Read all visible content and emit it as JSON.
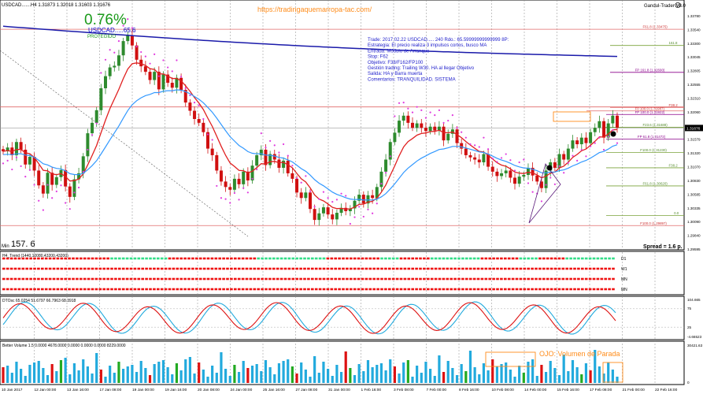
{
  "header": {
    "symbol_line": "USDCAD.......H4  1.31873 1.32018 1.31603 1.31676",
    "expert_label": "Gandul-Trader V8.0",
    "expert_icon": "smile-icon",
    "watermark_url": "https://tradingaquemarropa-tac.com/"
  },
  "badge": {
    "percent": "0.76%",
    "pair_line": "USDCAD.....65.6",
    "status": "PROTEGIDO",
    "percent_color": "#1a9a1a",
    "pair_color": "#0000cc",
    "status_color": "#1a9a1a"
  },
  "trade_note": {
    "lines": [
      "Trade: 2017.02.22 USDCAD..... 240  Rdo.: 65.59999999999999 8P:",
      "Estrategia: El precio realiza 3 impulsos cortos, busco MA",
      "Entrada: Módulo de Arranque",
      "Stop: F62",
      "Objetivo: F38/F162/FP100",
      "Gestión trading: Trailing W30. HA al llegar Objetivo",
      "Salida: HA y Barra muerta",
      "Comentarios: TRANQUILIDAD. SISTEMA"
    ],
    "color": "#2222cc"
  },
  "min_label": {
    "prefix": "Min",
    "value": "157. 6"
  },
  "spread_label": "Spread = 1.6 p.",
  "current_price_label": "1.31676",
  "price_axis_labels": [
    "1.33780",
    "1.33540",
    "1.33300",
    "1.33045",
    "1.32805",
    "1.32555",
    "1.32310",
    "1.32060",
    "1.31815",
    "1.31579",
    "1.31320",
    "1.31070",
    "1.30830",
    "1.30585",
    "1.30335",
    "1.30090",
    "1.29840",
    "1.29595"
  ],
  "level_labels": [
    {
      "text": "F61.8 (1.33475)",
      "color": "#cc3333"
    },
    {
      "text": "161.8",
      "color": "#558b2f"
    },
    {
      "text": "FP 161.8 (1.32690)",
      "color": "#8b008b"
    },
    {
      "text": "F38.2",
      "color": "#cc3333"
    },
    {
      "text": "F0 100.0 (1.31987)",
      "color": "#cc3333"
    },
    {
      "text": "FP 100.0 (1.31922)",
      "color": "#8b008b"
    },
    {
      "text": "F23.6 (1.31688)",
      "color": "#558b2f"
    },
    {
      "text": "FP 61.8 (1.31472)",
      "color": "#8b008b"
    },
    {
      "text": "F100.0 (1.31230)",
      "color": "#558b2f"
    },
    {
      "text": "F38.2",
      "color": "#558b2f"
    },
    {
      "text": "F61.8 (1.30620)",
      "color": "#558b2f"
    },
    {
      "text": "0.0",
      "color": "#558b2f"
    },
    {
      "text": "F100.0 (1.29897)",
      "color": "#cc3333"
    }
  ],
  "htrend": {
    "title": "H4_Trend (1440,10080,43200,43200)",
    "rows": [
      {
        "label": "D1",
        "pattern": [
          [
            "red",
            28
          ],
          [
            "green",
            15
          ],
          [
            "red",
            23
          ],
          [
            "green",
            18
          ],
          [
            "red",
            14
          ],
          [
            "green",
            5
          ],
          [
            "red",
            8
          ],
          [
            "green",
            13
          ],
          [
            "red",
            10
          ],
          [
            "green",
            5
          ],
          [
            "red",
            7
          ],
          [
            "green",
            13
          ]
        ]
      },
      {
        "label": "W1",
        "pattern": [
          [
            "red",
            159
          ]
        ]
      },
      {
        "label": "MN",
        "pattern": [
          [
            "red",
            159
          ]
        ]
      },
      {
        "label": "MN",
        "pattern": [
          [
            "red",
            159
          ]
        ]
      }
    ]
  },
  "dtosc": {
    "title": "DTOsc 65.0254 51.6797 66.7963 68.3918",
    "axis_labels": [
      "104.665",
      "75",
      "25",
      "-4.66523"
    ]
  },
  "volume": {
    "title": "Better Volume 1.5 0.0000 4678.0000 0.0000 0.0000 0.0000 8229.0000",
    "note": "OJO: Volumen de Parada",
    "axis_labels": [
      "30421.63",
      "0"
    ]
  },
  "time_labels": [
    "10 Jan 2017",
    "12 Jan 00:00",
    "13 Jan 16:00",
    "17 Jan 08:00",
    "19 Jan 00:00",
    "19 Jan 16:00",
    "20 Jan 08:00",
    "24 Jan 00:00",
    "25 Jan 16:00",
    "27 Jan 08:00",
    "31 Jan 00:00",
    "1 Feb 16:00",
    "3 Feb 08:00",
    "7 Feb 00:00",
    "8 Feb 16:00",
    "10 Feb 08:00",
    "14 Feb 00:00",
    "15 Feb 16:00",
    "17 Feb 08:00",
    "21 Feb 00:00",
    "22 Feb 16:00"
  ],
  "colors": {
    "bull": "#2e8b2e",
    "bear": "#d01010",
    "ma_fast": "#e02020",
    "ma_mid": "#3399ff",
    "ma_slow": "#1a1aaa",
    "psar": "#e03adf",
    "axis_bg": "#ffffff",
    "grid": "#c8c8c8"
  },
  "chart_data": {
    "type": "candlestick",
    "symbol": "USDCAD",
    "timeframe": "H4",
    "ohlc_last": {
      "open": 1.31873,
      "high": 1.32018,
      "low": 1.31603,
      "close": 1.31676
    },
    "ylim": [
      1.2947,
      1.3398
    ],
    "close_series": [
      1.3125,
      1.3132,
      1.3118,
      1.3142,
      1.3128,
      1.3101,
      1.3115,
      1.309,
      1.3063,
      1.3048,
      1.3086,
      1.3064,
      1.3078,
      1.3091,
      1.3061,
      1.3042,
      1.3074,
      1.3085,
      1.3116,
      1.3158,
      1.3177,
      1.32,
      1.324,
      1.3262,
      1.3278,
      1.3281,
      1.33,
      1.3326,
      1.3336,
      1.3318,
      1.3292,
      1.328,
      1.327,
      1.3255,
      1.327,
      1.3238,
      1.3265,
      1.325,
      1.3241,
      1.3259,
      1.3237,
      1.3214,
      1.3199,
      1.3184,
      1.3177,
      1.316,
      1.313,
      1.3118,
      1.309,
      1.307,
      1.306,
      1.3055,
      1.3075,
      1.3065,
      1.3088,
      1.3072,
      1.3099,
      1.3118,
      1.3128,
      1.31,
      1.312,
      1.311,
      1.3095,
      1.3108,
      1.3085,
      1.3075,
      1.305,
      1.304,
      1.305,
      1.302,
      1.3,
      1.3012,
      1.3023,
      1.301,
      1.3001,
      1.3013,
      1.3022,
      1.3016,
      1.3021,
      1.3035,
      1.3046,
      1.303,
      1.3045,
      1.304,
      1.306,
      1.3088,
      1.311,
      1.3142,
      1.3159,
      1.3181,
      1.319,
      1.3177,
      1.3168,
      1.3176,
      1.3168,
      1.3162,
      1.317,
      1.3163,
      1.317,
      1.3145,
      1.3157,
      1.3165,
      1.314,
      1.313,
      1.3118,
      1.3114,
      1.311,
      1.3105,
      1.312,
      1.3097,
      1.3088,
      1.308,
      1.3085,
      1.309,
      1.3077,
      1.3066,
      1.3079,
      1.3082,
      1.3095,
      1.3081,
      1.307,
      1.3058,
      1.309,
      1.3105,
      1.3095,
      1.312,
      1.311,
      1.313,
      1.3145,
      1.3138,
      1.315,
      1.314,
      1.316,
      1.3168,
      1.318,
      1.315,
      1.3176,
      1.319,
      1.3168
    ],
    "overlays": [
      "EMA fast (red)",
      "EMA mid (blue)",
      "SMA slow (dark blue)",
      "Parabolic SAR (magenta dots)"
    ],
    "fib_levels": [
      1.33475,
      1.3318,
      1.3269,
      1.3205,
      1.31987,
      1.31922,
      1.31688,
      1.31472,
      1.3123,
      1.3095,
      1.3062,
      1.3008,
      1.29897
    ],
    "subwindows": [
      {
        "name": "H4_Trend",
        "type": "dot-rows",
        "rows": [
          "D1",
          "W1",
          "MN",
          "MN"
        ]
      },
      {
        "name": "DTOsc",
        "type": "line",
        "values": [
          65.0254,
          51.6797,
          66.7963,
          68.3918
        ],
        "ylim": [
          -4.66523,
          104.665
        ],
        "levels": [
          25,
          75
        ]
      },
      {
        "name": "Better Volume",
        "type": "bar",
        "ylim": [
          0,
          30421.63
        ],
        "last_values": [
          4678,
          8229
        ]
      }
    ]
  }
}
